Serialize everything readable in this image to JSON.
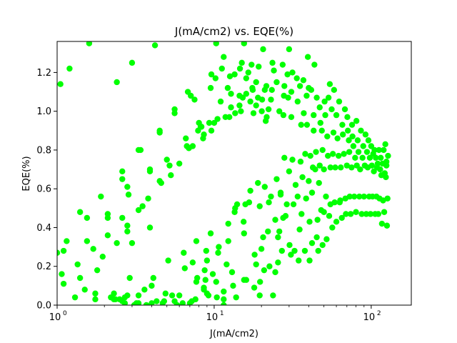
{
  "chart_data": {
    "type": "scatter",
    "title": "J(mA/cm2) vs. EQE(%)",
    "xlabel": "J(mA/cm2)",
    "ylabel": "EQE(%)",
    "xscale": "log",
    "xlim": [
      1,
      180
    ],
    "ylim": [
      0,
      1.36
    ],
    "grid": false,
    "marker_color": "#00ff00",
    "x_ticks": [
      {
        "value": 1,
        "label": "10",
        "exp": "0"
      },
      {
        "value": 10,
        "label": "10",
        "exp": "1"
      },
      {
        "value": 100,
        "label": "10",
        "exp": "2"
      }
    ],
    "y_ticks": [
      {
        "value": 0.0,
        "label": "0.0"
      },
      {
        "value": 0.2,
        "label": "0.2"
      },
      {
        "value": 0.4,
        "label": "0.4"
      },
      {
        "value": 0.6,
        "label": "0.6"
      },
      {
        "value": 0.8,
        "label": "0.8"
      },
      {
        "value": 1.0,
        "label": "1.0"
      },
      {
        "value": 1.2,
        "label": "1.2"
      }
    ],
    "points": [
      [
        1.0,
        0.27
      ],
      [
        1.05,
        1.14
      ],
      [
        1.07,
        0.16
      ],
      [
        1.1,
        0.28
      ],
      [
        1.15,
        0.33
      ],
      [
        1.2,
        1.22
      ],
      [
        1.1,
        0.11
      ],
      [
        1.3,
        0.04
      ],
      [
        1.35,
        0.21
      ],
      [
        1.4,
        0.48
      ],
      [
        1.4,
        0.14
      ],
      [
        1.5,
        0.08
      ],
      [
        1.55,
        0.45
      ],
      [
        1.6,
        1.35
      ],
      [
        1.55,
        0.33
      ],
      [
        1.7,
        0.29
      ],
      [
        1.75,
        0.06
      ],
      [
        1.75,
        0.03
      ],
      [
        1.8,
        0.18
      ],
      [
        1.9,
        0.56
      ],
      [
        1.95,
        0.25
      ],
      [
        2.1,
        0.47
      ],
      [
        2.1,
        0.36
      ],
      [
        2.1,
        0.45
      ],
      [
        2.2,
        0.04
      ],
      [
        2.3,
        0.03
      ],
      [
        2.3,
        0.06
      ],
      [
        2.35,
        0.03
      ],
      [
        2.4,
        1.15
      ],
      [
        2.4,
        0.32
      ],
      [
        2.5,
        0.03
      ],
      [
        2.6,
        0.02
      ],
      [
        2.7,
        0.04
      ],
      [
        2.6,
        0.69
      ],
      [
        2.6,
        0.65
      ],
      [
        2.6,
        0.45
      ],
      [
        2.7,
        0.01
      ],
      [
        2.8,
        0.05
      ],
      [
        2.8,
        0.61
      ],
      [
        2.85,
        0.57
      ],
      [
        2.8,
        0.41
      ],
      [
        2.8,
        0.38
      ],
      [
        2.9,
        0.14
      ],
      [
        3.0,
        0.32
      ],
      [
        3.0,
        1.25
      ],
      [
        3.1,
        0.0
      ],
      [
        3.2,
        0.01
      ],
      [
        3.3,
        0.01
      ],
      [
        3.3,
        0.05
      ],
      [
        3.3,
        0.49
      ],
      [
        3.3,
        0.8
      ],
      [
        3.4,
        0.8
      ],
      [
        3.5,
        0.51
      ],
      [
        3.6,
        0.08
      ],
      [
        3.7,
        0.0
      ],
      [
        3.8,
        0.55
      ],
      [
        3.9,
        0.4
      ],
      [
        3.9,
        0.69
      ],
      [
        3.9,
        0.7
      ],
      [
        4.0,
        0.01
      ],
      [
        4.0,
        0.1
      ],
      [
        4.1,
        0.14
      ],
      [
        4.2,
        1.34
      ],
      [
        4.3,
        0.02
      ],
      [
        4.5,
        0.64
      ],
      [
        4.5,
        0.9
      ],
      [
        4.5,
        0.89
      ],
      [
        4.6,
        0.63
      ],
      [
        4.7,
        0.01
      ],
      [
        4.8,
        0.02
      ],
      [
        4.9,
        0.06
      ],
      [
        5.0,
        0.75
      ],
      [
        5.2,
        0.72
      ],
      [
        5.1,
        0.23
      ],
      [
        5.3,
        0.67
      ],
      [
        5.4,
        0.05
      ],
      [
        5.6,
        0.99
      ],
      [
        5.6,
        1.01
      ],
      [
        5.6,
        0.02
      ],
      [
        5.8,
        0.0
      ],
      [
        6.0,
        0.05
      ],
      [
        6.0,
        0.73
      ],
      [
        6.3,
        0.01
      ],
      [
        6.4,
        0.27
      ],
      [
        6.5,
        0.19
      ],
      [
        6.6,
        0.86
      ],
      [
        6.7,
        0.82
      ],
      [
        6.8,
        1.1
      ],
      [
        6.9,
        0.81
      ],
      [
        6.9,
        0.81
      ],
      [
        7.0,
        0.01
      ],
      [
        7.1,
        1.08
      ],
      [
        7.2,
        0.02
      ],
      [
        7.3,
        0.22
      ],
      [
        7.3,
        0.82
      ],
      [
        7.5,
        1.06
      ],
      [
        7.6,
        0.03
      ],
      [
        7.7,
        0.12
      ],
      [
        7.7,
        0.33
      ],
      [
        7.8,
        0.14
      ],
      [
        7.9,
        0.9
      ],
      [
        8.0,
        0.94
      ],
      [
        8.3,
        0.92
      ],
      [
        8.2,
        0.92
      ],
      [
        8.5,
        0.86
      ],
      [
        8.6,
        0.09
      ],
      [
        8.6,
        0.08
      ],
      [
        8.6,
        0.88
      ],
      [
        8.7,
        0.18
      ],
      [
        8.8,
        0.13
      ],
      [
        8.9,
        0.28
      ],
      [
        9.0,
        0.23
      ],
      [
        9.0,
        0.06
      ],
      [
        9.2,
        0.05
      ],
      [
        9.3,
        0.94
      ],
      [
        9.5,
        1.12
      ],
      [
        9.6,
        1.19
      ],
      [
        9.6,
        0.9
      ],
      [
        9.5,
        0.37
      ],
      [
        9.8,
        0.16
      ],
      [
        10.0,
        0.94
      ],
      [
        10.2,
        1.17
      ],
      [
        10.3,
        1.35
      ],
      [
        10.3,
        0.12
      ],
      [
        10.4,
        0.04
      ],
      [
        10.5,
        0.96
      ],
      [
        10.6,
        0.27
      ],
      [
        10.7,
        0.3
      ],
      [
        11.0,
        1.05
      ],
      [
        11.2,
        1.22
      ],
      [
        11.5,
        1.28
      ],
      [
        11.5,
        0.0
      ],
      [
        11.5,
        0.07
      ],
      [
        11.5,
        0.03
      ],
      [
        11.8,
        0.97
      ],
      [
        12.0,
        0.21
      ],
      [
        12.2,
        1.12
      ],
      [
        12.3,
        0.33
      ],
      [
        12.3,
        0.42
      ],
      [
        12.5,
        0.97
      ],
      [
        12.6,
        1.18
      ],
      [
        12.8,
        1.09
      ],
      [
        12.8,
        1.02
      ],
      [
        13.0,
        0.17
      ],
      [
        13.2,
        0.1
      ],
      [
        13.5,
        1.19
      ],
      [
        13.6,
        0.99
      ],
      [
        13.5,
        0.48
      ],
      [
        13.6,
        0.5
      ],
      [
        13.8,
        0.04
      ],
      [
        14.0,
        0.52
      ],
      [
        14.5,
        1.08
      ],
      [
        14.5,
        1.03
      ],
      [
        14.6,
        1.22
      ],
      [
        14.8,
        1.0
      ],
      [
        15.0,
        1.25
      ],
      [
        15.2,
        1.07
      ],
      [
        15.4,
        0.43
      ],
      [
        15.5,
        0.13
      ],
      [
        15.5,
        0.37
      ],
      [
        15.5,
        1.35
      ],
      [
        15.8,
        0.52
      ],
      [
        16.0,
        1.09
      ],
      [
        16.0,
        1.17
      ],
      [
        16.0,
        0.13
      ],
      [
        16.5,
        1.2
      ],
      [
        16.7,
        0.53
      ],
      [
        17.0,
        0.59
      ],
      [
        17.0,
        1.05
      ],
      [
        17.3,
        1.24
      ],
      [
        17.5,
        1.12
      ],
      [
        17.6,
        1.11
      ],
      [
        17.8,
        0.99
      ],
      [
        18.0,
        0.09
      ],
      [
        18.1,
        0.26
      ],
      [
        18.5,
        1.03
      ],
      [
        18.5,
        1.15
      ],
      [
        18.5,
        0.21
      ],
      [
        19.0,
        1.07
      ],
      [
        19.0,
        0.63
      ],
      [
        19.2,
        1.23
      ],
      [
        19.6,
        0.12
      ],
      [
        19.5,
        0.51
      ],
      [
        19.5,
        0.05
      ],
      [
        20.0,
        0.29
      ],
      [
        20.1,
        1.0
      ],
      [
        20.2,
        1.06
      ],
      [
        20.5,
        0.35
      ],
      [
        20.5,
        1.32
      ],
      [
        20.8,
        0.18
      ],
      [
        21.0,
        1.11
      ],
      [
        21.0,
        0.61
      ],
      [
        21.5,
        1.13
      ],
      [
        21.3,
        0.95
      ],
      [
        21.6,
        0.97
      ],
      [
        22.2,
        1.01
      ],
      [
        22.0,
        0.38
      ],
      [
        22.3,
        0.53
      ],
      [
        22.5,
        0.2
      ],
      [
        23.0,
        0.56
      ],
      [
        23.0,
        1.06
      ],
      [
        23.3,
        1.11
      ],
      [
        23.5,
        1.25
      ],
      [
        23.7,
        0.05
      ],
      [
        24.0,
        1.21
      ],
      [
        24.5,
        0.44
      ],
      [
        24.5,
        0.17
      ],
      [
        25.0,
        0.65
      ],
      [
        25.0,
        1.15
      ],
      [
        25.5,
        0.35
      ],
      [
        25.5,
        0.22
      ],
      [
        26.0,
        0.38
      ],
      [
        26.0,
        1.0
      ],
      [
        26.5,
        0.57
      ],
      [
        26.5,
        0.58
      ],
      [
        27.0,
        0.28
      ],
      [
        27.3,
        1.24
      ],
      [
        27.5,
        0.45
      ],
      [
        27.6,
        0.98
      ],
      [
        27.8,
        1.08
      ],
      [
        28.0,
        1.13
      ],
      [
        28.0,
        0.76
      ],
      [
        28.5,
        0.46
      ],
      [
        29.0,
        0.52
      ],
      [
        29.3,
        1.19
      ],
      [
        29.6,
        1.07
      ],
      [
        30.0,
        0.69
      ],
      [
        30.0,
        1.32
      ],
      [
        30.2,
        0.31
      ],
      [
        30.8,
        0.26
      ],
      [
        31.0,
        1.1
      ],
      [
        31.0,
        0.97
      ],
      [
        31.5,
        0.75
      ],
      [
        31.5,
        1.2
      ],
      [
        32.0,
        0.52
      ],
      [
        32.5,
        0.28
      ],
      [
        33.0,
        0.62
      ],
      [
        33.6,
        1.17
      ],
      [
        34.0,
        1.05
      ],
      [
        34.0,
        0.56
      ],
      [
        34.5,
        0.23
      ],
      [
        35.0,
        0.39
      ],
      [
        35.2,
        1.13
      ],
      [
        35.5,
        0.74
      ],
      [
        35.8,
        0.93
      ],
      [
        36.0,
        0.47
      ],
      [
        36.5,
        0.66
      ],
      [
        37.0,
        1.16
      ],
      [
        37.2,
        0.99
      ],
      [
        37.8,
        0.28
      ],
      [
        38.0,
        0.78
      ],
      [
        38.5,
        0.55
      ],
      [
        38.8,
        1.08
      ],
      [
        39.0,
        0.93
      ],
      [
        39.5,
        1.28
      ],
      [
        40.0,
        0.64
      ],
      [
        40.0,
        1.12
      ],
      [
        40.5,
        0.23
      ],
      [
        40.5,
        0.43
      ],
      [
        41.0,
        0.77
      ],
      [
        41.5,
        1.11
      ],
      [
        42.0,
        0.58
      ],
      [
        42.0,
        0.32
      ],
      [
        42.5,
        0.71
      ],
      [
        43.0,
        0.98
      ],
      [
        43.0,
        0.9
      ],
      [
        43.5,
        1.24
      ],
      [
        44.0,
        0.7
      ],
      [
        44.5,
        0.79
      ],
      [
        45.0,
        1.07
      ],
      [
        45.0,
        0.35
      ],
      [
        45.5,
        0.44
      ],
      [
        46.0,
        0.28
      ],
      [
        46.5,
        0.63
      ],
      [
        47.0,
        0.72
      ],
      [
        47.0,
        1.02
      ],
      [
        47.5,
        0.94
      ],
      [
        48.0,
        0.49
      ],
      [
        48.5,
        0.9
      ],
      [
        49.0,
        0.31
      ],
      [
        49.0,
        0.8
      ],
      [
        50.0,
        0.48
      ],
      [
        50.0,
        0.7
      ],
      [
        50.5,
        1.05
      ],
      [
        51.0,
        0.98
      ],
      [
        51.5,
        0.56
      ],
      [
        52.0,
        0.34
      ],
      [
        52.5,
        0.87
      ],
      [
        53.0,
        0.77
      ],
      [
        53.5,
        1.07
      ],
      [
        54.0,
        0.46
      ],
      [
        54.5,
        1.14
      ],
      [
        55.0,
        0.52
      ],
      [
        55.0,
        0.71
      ],
      [
        56.0,
        1.01
      ],
      [
        56.5,
        0.4
      ],
      [
        57.0,
        0.78
      ],
      [
        57.5,
        0.89
      ],
      [
        58.0,
        1.11
      ],
      [
        58.5,
        0.53
      ],
      [
        59.0,
        0.71
      ],
      [
        60.0,
        0.98
      ],
      [
        60.0,
        0.43
      ],
      [
        61.0,
        0.86
      ],
      [
        62.0,
        0.77
      ],
      [
        62.5,
        1.05
      ],
      [
        63.0,
        0.53
      ],
      [
        63.5,
        0.54
      ],
      [
        64.0,
        0.71
      ],
      [
        65.0,
        0.45
      ],
      [
        65.5,
        0.93
      ],
      [
        66.0,
        0.88
      ],
      [
        67.0,
        0.78
      ],
      [
        68.0,
        1.01
      ],
      [
        68.5,
        0.55
      ],
      [
        69.0,
        0.47
      ],
      [
        70.0,
        0.72
      ],
      [
        70.5,
        0.97
      ],
      [
        71.0,
        0.9
      ],
      [
        72.0,
        0.85
      ],
      [
        72.5,
        0.79
      ],
      [
        73.0,
        0.56
      ],
      [
        74.0,
        0.47
      ],
      [
        75.0,
        0.71
      ],
      [
        75.5,
        0.93
      ],
      [
        76.0,
        0.87
      ],
      [
        77.0,
        0.82
      ],
      [
        78.0,
        0.56
      ],
      [
        79.0,
        0.76
      ],
      [
        80.0,
        0.48
      ],
      [
        80.5,
        0.95
      ],
      [
        81.0,
        0.72
      ],
      [
        82.0,
        0.85
      ],
      [
        83.0,
        0.79
      ],
      [
        84.0,
        0.56
      ],
      [
        85.0,
        0.7
      ],
      [
        86.0,
        0.9
      ],
      [
        87.0,
        0.47
      ],
      [
        88.0,
        0.76
      ],
      [
        89.0,
        0.82
      ],
      [
        90.0,
        0.56
      ],
      [
        91.0,
        0.72
      ],
      [
        92.0,
        0.88
      ],
      [
        93.0,
        0.47
      ],
      [
        94.0,
        0.79
      ],
      [
        95.0,
        0.71
      ],
      [
        96.0,
        0.85
      ],
      [
        97.0,
        0.56
      ],
      [
        98.0,
        0.76
      ],
      [
        99.0,
        0.47
      ],
      [
        100.0,
        0.82
      ],
      [
        101.0,
        0.72
      ],
      [
        102.0,
        0.56
      ],
      [
        103.0,
        0.78
      ],
      [
        104.0,
        0.69
      ],
      [
        105.0,
        0.8
      ],
      [
        106.0,
        0.47
      ],
      [
        107.0,
        0.76
      ],
      [
        108.0,
        0.56
      ],
      [
        109.0,
        0.71
      ],
      [
        110.0,
        0.73
      ],
      [
        111.0,
        0.47
      ],
      [
        112.0,
        0.8
      ],
      [
        113.0,
        0.55
      ],
      [
        114.0,
        0.7
      ],
      [
        115.0,
        0.76
      ],
      [
        116.0,
        0.67
      ],
      [
        117.0,
        0.42
      ],
      [
        118.0,
        0.73
      ],
      [
        119.0,
        0.54
      ],
      [
        120.0,
        0.8
      ],
      [
        121.0,
        0.48
      ],
      [
        122.0,
        0.68
      ],
      [
        123.0,
        0.83
      ],
      [
        124.0,
        0.66
      ],
      [
        125.0,
        0.72
      ],
      [
        126.0,
        0.41
      ],
      [
        127.0,
        0.55
      ],
      [
        128.0,
        0.77
      ],
      [
        125.0,
        0.74
      ]
    ]
  }
}
